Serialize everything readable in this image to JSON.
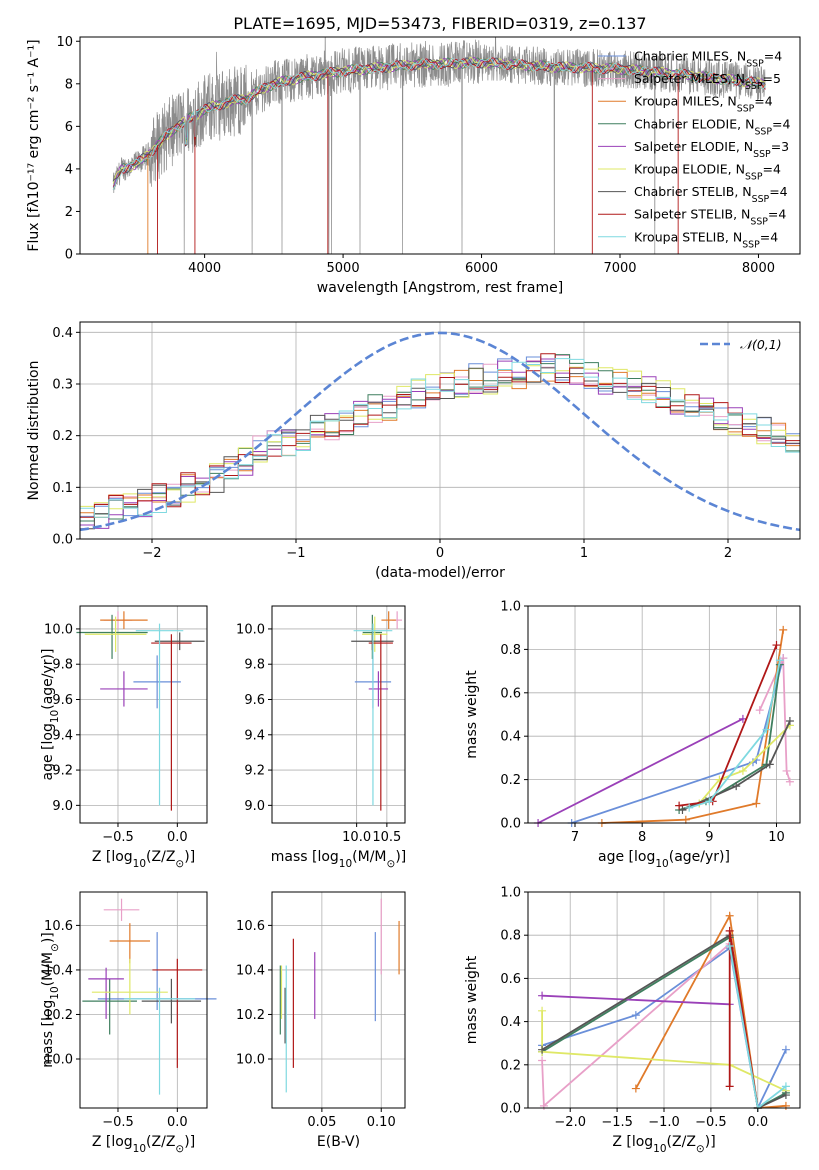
{
  "figure": {
    "title": "PLATE=1695, MJD=53473, FIBERID=0319, z=0.137"
  },
  "chart_data": [
    {
      "id": "spectrum",
      "type": "line",
      "xlabel": "wavelength [Angstrom, rest frame]",
      "ylabel": "Flux [fλ10⁻¹⁷ erg cm⁻² s⁻¹ A⁻¹]",
      "xlim": [
        3100,
        8300
      ],
      "ylim": [
        0,
        10.2
      ],
      "xticks": [
        4000,
        5000,
        6000,
        7000,
        8000
      ],
      "yticks": [
        0,
        2,
        4,
        6,
        8,
        10
      ],
      "grid": false,
      "legend_position": "right",
      "continuum": {
        "x": [
          3340,
          3400,
          3500,
          3600,
          3700,
          3800,
          3900,
          4000,
          4100,
          4200,
          4300,
          4400,
          4500,
          4700,
          5000,
          5500,
          6000,
          6500,
          7000,
          7500,
          8050
        ],
        "y": [
          3.2,
          4.0,
          4.2,
          4.7,
          5.4,
          6.0,
          6.4,
          6.8,
          7.0,
          7.2,
          7.3,
          7.7,
          8.0,
          8.3,
          8.6,
          8.9,
          9.0,
          8.8,
          8.7,
          8.4,
          8.0
        ]
      },
      "series": [
        {
          "name": "Chabrier MILES, N$_{SSP}$=4",
          "color": "#6a8fd9"
        },
        {
          "name": "Salpeter MILES, N$_{SSP}$=5",
          "color": "#e8a0c8"
        },
        {
          "name": "Kroupa MILES, N$_{SSP}$=4",
          "color": "#e07a2a"
        },
        {
          "name": "Chabrier ELODIE, N$_{SSP}$=4",
          "color": "#3f7f5f"
        },
        {
          "name": "Salpeter ELODIE, N$_{SSP}$=3",
          "color": "#9a40b8"
        },
        {
          "name": "Kroupa ELODIE, N$_{SSP}$=4",
          "color": "#dfe866"
        },
        {
          "name": "Chabrier STELIB, N$_{SSP}$=4",
          "color": "#555555"
        },
        {
          "name": "Salpeter STELIB, N$_{SSP}$=4",
          "color": "#b01818"
        },
        {
          "name": "Kroupa STELIB, N$_{SSP}$=4",
          "color": "#7fd9e0"
        }
      ],
      "data_color": "#8c8c8c"
    },
    {
      "id": "residuals",
      "type": "area",
      "xlabel": "(data-model)/error",
      "ylabel": "Normed distribution",
      "xlim": [
        -2.5,
        2.5
      ],
      "ylim": [
        0,
        0.42
      ],
      "xticks": [
        -2,
        -1,
        0,
        1,
        2
      ],
      "yticks": [
        0.0,
        0.1,
        0.2,
        0.3,
        0.4
      ],
      "grid": true,
      "legend_position": "top-right",
      "gaussian_label": "$\\mathcal{N}(0,1)$",
      "gaussian_color": "#5b85d4",
      "bin_width": 0.1,
      "base_histogram": [
        0.04,
        0.05,
        0.06,
        0.07,
        0.07,
        0.08,
        0.09,
        0.1,
        0.11,
        0.12,
        0.14,
        0.15,
        0.17,
        0.18,
        0.19,
        0.2,
        0.21,
        0.22,
        0.23,
        0.24,
        0.25,
        0.26,
        0.27,
        0.28,
        0.29,
        0.3,
        0.3,
        0.31,
        0.31,
        0.32,
        0.32,
        0.33,
        0.33,
        0.33,
        0.32,
        0.32,
        0.31,
        0.31,
        0.3,
        0.29,
        0.28,
        0.27,
        0.26,
        0.25,
        0.24,
        0.23,
        0.22,
        0.21,
        0.2,
        0.19,
        0.18,
        0.17,
        0.16,
        0.15,
        0.14,
        0.13,
        0.12,
        0.11,
        0.1,
        0.09,
        0.08,
        0.07,
        0.07,
        0.06,
        0.06,
        0.05,
        0.05,
        0.05,
        0.04,
        0.04,
        0.04,
        0.04,
        0.04,
        0.04,
        0.04,
        0.04,
        0.04,
        0.04,
        0.04,
        0.04,
        0.04,
        0.04,
        0.04,
        0.04,
        0.04,
        0.04,
        0.04,
        0.04,
        0.04,
        0.04,
        0.04,
        0.04,
        0.04,
        0.04,
        0.04,
        0.04,
        0.04,
        0.04,
        0.04,
        0.04
      ]
    },
    {
      "id": "age-vs-z",
      "type": "scatter",
      "xlabel": "Z [log$_{10}$(Z/Z$_\\odot$)]",
      "ylabel": "age  [log$_{10}$(age/yr)]",
      "xlim": [
        -0.82,
        0.25
      ],
      "ylim": [
        8.9,
        10.13
      ],
      "xticks": [
        -0.5,
        0.0
      ],
      "yticks": [
        9.0,
        9.2,
        9.4,
        9.6,
        9.8,
        10.0
      ],
      "grid": true,
      "points": [
        {
          "series": 0,
          "x": -0.17,
          "y": 9.7,
          "xerr": 0.2,
          "yerr": [
            0.15,
            0.15
          ]
        },
        {
          "series": 1,
          "x": -0.5,
          "y": 10.05,
          "xerr": 0.12,
          "yerr": [
            0.05,
            0.05
          ]
        },
        {
          "series": 2,
          "x": -0.45,
          "y": 10.05,
          "xerr": 0.2,
          "yerr": [
            0.05,
            0.05
          ]
        },
        {
          "series": 3,
          "x": -0.55,
          "y": 9.98,
          "xerr": 0.3,
          "yerr": [
            0.15,
            0.1
          ]
        },
        {
          "series": 4,
          "x": -0.45,
          "y": 9.66,
          "xerr": 0.2,
          "yerr": [
            0.1,
            0.1
          ]
        },
        {
          "series": 5,
          "x": -0.52,
          "y": 9.97,
          "xerr": 0.26,
          "yerr": [
            0.1,
            0.1
          ]
        },
        {
          "series": 6,
          "x": 0.02,
          "y": 9.93,
          "xerr": 0.21,
          "yerr": [
            0.05,
            0.05
          ]
        },
        {
          "series": 7,
          "x": -0.05,
          "y": 9.92,
          "xerr": 0.17,
          "yerr": [
            0.95,
            0.05
          ]
        },
        {
          "series": 8,
          "x": -0.15,
          "y": 9.99,
          "xerr": 0.2,
          "yerr": [
            0.99,
            0.04
          ]
        }
      ]
    },
    {
      "id": "age-vs-mass",
      "type": "scatter",
      "xlabel": "mass [log$_{10}$(M/M$_\\odot$)]",
      "ylabel": "",
      "xlim": [
        8.6,
        10.8
      ],
      "ylim": [
        8.9,
        10.13
      ],
      "xticks": [
        10.0,
        10.5
      ],
      "yticks": [
        9.0,
        9.2,
        9.4,
        9.6,
        9.8,
        10.0
      ],
      "grid": true,
      "points": [
        {
          "series": 0,
          "x": 10.27,
          "y": 9.7,
          "xerr": 0.3,
          "yerr": [
            0.15,
            0.15
          ]
        },
        {
          "series": 1,
          "x": 10.67,
          "y": 10.05,
          "xerr": 0.08,
          "yerr": [
            0.05,
            0.05
          ]
        },
        {
          "series": 2,
          "x": 10.53,
          "y": 10.05,
          "xerr": 0.12,
          "yerr": [
            0.05,
            0.05
          ]
        },
        {
          "series": 3,
          "x": 10.26,
          "y": 9.98,
          "xerr": 0.16,
          "yerr": [
            0.15,
            0.1
          ]
        },
        {
          "series": 4,
          "x": 10.36,
          "y": 9.66,
          "xerr": 0.16,
          "yerr": [
            0.1,
            0.1
          ]
        },
        {
          "series": 5,
          "x": 10.3,
          "y": 9.97,
          "xerr": 0.21,
          "yerr": [
            0.1,
            0.1
          ]
        },
        {
          "series": 6,
          "x": 10.26,
          "y": 9.93,
          "xerr": 0.35,
          "yerr": [
            0.05,
            0.05
          ]
        },
        {
          "series": 7,
          "x": 10.4,
          "y": 9.92,
          "xerr": 0.2,
          "yerr": [
            0.95,
            0.05
          ]
        },
        {
          "series": 8,
          "x": 10.27,
          "y": 9.99,
          "xerr": 0.32,
          "yerr": [
            0.99,
            0.04
          ]
        }
      ]
    },
    {
      "id": "weight-vs-age",
      "type": "line",
      "xlabel": "age  [log$_{10}$(age/yr)]",
      "ylabel": "mass weight",
      "xlim": [
        6.3,
        10.35
      ],
      "ylim": [
        0,
        1.0
      ],
      "xticks": [
        7,
        8,
        9,
        10
      ],
      "yticks": [
        0.0,
        0.2,
        0.4,
        0.6,
        0.8,
        1.0
      ],
      "grid": true,
      "series": [
        {
          "series": 0,
          "x": [
            10.1,
            9.7,
            9.65,
            6.95
          ],
          "y": [
            0.76,
            0.29,
            0.28,
            0.0
          ]
        },
        {
          "series": 1,
          "x": [
            10.2,
            10.15,
            10.1,
            9.75
          ],
          "y": [
            0.19,
            0.24,
            0.76,
            0.52
          ]
        },
        {
          "series": 2,
          "x": [
            10.1,
            9.7,
            8.65,
            7.4
          ],
          "y": [
            0.89,
            0.09,
            0.015,
            0.0
          ]
        },
        {
          "series": 3,
          "x": [
            10.05,
            9.85,
            8.95,
            8.55
          ],
          "y": [
            0.73,
            0.27,
            0.1,
            0.06
          ]
        },
        {
          "series": 4,
          "x": [
            6.45,
            9.5
          ],
          "y": [
            0.0,
            0.48
          ]
        },
        {
          "series": 5,
          "x": [
            10.2,
            9.5,
            9.15,
            8.85
          ],
          "y": [
            0.45,
            0.24,
            0.2,
            0.09
          ]
        },
        {
          "series": 6,
          "x": [
            10.2,
            9.9,
            9.4,
            8.6
          ],
          "y": [
            0.47,
            0.27,
            0.17,
            0.06
          ]
        },
        {
          "series": 7,
          "x": [
            10.0,
            9.05,
            8.55
          ],
          "y": [
            0.82,
            0.1,
            0.08
          ]
        },
        {
          "series": 8,
          "x": [
            10.05,
            9.85,
            9.0,
            8.7
          ],
          "y": [
            0.75,
            0.43,
            0.1,
            0.07
          ]
        }
      ]
    },
    {
      "id": "mass-vs-z",
      "type": "scatter",
      "xlabel": "Z [log$_{10}$(Z/Z$_\\odot$)]",
      "ylabel": "mass [log$_{10}$(M/M$_\\odot$)]",
      "xlim": [
        -0.82,
        0.25
      ],
      "ylim": [
        9.78,
        10.75
      ],
      "xticks": [
        -0.5,
        0.0
      ],
      "yticks": [
        10.0,
        10.2,
        10.4,
        10.6
      ],
      "grid": true,
      "points": [
        {
          "series": 0,
          "x": -0.17,
          "y": 10.27,
          "xerr": 0.5,
          "yerr": [
            0.05,
            0.3
          ]
        },
        {
          "series": 1,
          "x": -0.47,
          "y": 10.67,
          "xerr": 0.15,
          "yerr": [
            0.05,
            0.05
          ]
        },
        {
          "series": 2,
          "x": -0.4,
          "y": 10.53,
          "xerr": 0.17,
          "yerr": [
            0.1,
            0.08
          ]
        },
        {
          "series": 3,
          "x": -0.57,
          "y": 10.26,
          "xerr": 0.23,
          "yerr": [
            0.15,
            0.1
          ]
        },
        {
          "series": 4,
          "x": -0.6,
          "y": 10.36,
          "xerr": 0.15,
          "yerr": [
            0.18,
            0.05
          ]
        },
        {
          "series": 5,
          "x": -0.4,
          "y": 10.3,
          "xerr": 0.32,
          "yerr": [
            0.1,
            0.15
          ]
        },
        {
          "series": 6,
          "x": -0.05,
          "y": 10.26,
          "xerr": 0.25,
          "yerr": [
            0.1,
            0.1
          ]
        },
        {
          "series": 7,
          "x": 0.0,
          "y": 10.4,
          "xerr": 0.21,
          "yerr": [
            0.44,
            0.05
          ]
        },
        {
          "series": 8,
          "x": -0.15,
          "y": 10.27,
          "xerr": 0.3,
          "yerr": [
            0.43,
            0.05
          ]
        }
      ]
    },
    {
      "id": "mass-vs-ebv",
      "type": "scatter",
      "xlabel": "E(B-V)",
      "ylabel": "",
      "xlim": [
        0.008,
        0.12
      ],
      "ylim": [
        9.78,
        10.75
      ],
      "xticks": [
        0.05,
        0.1
      ],
      "yticks": [
        10.0,
        10.2,
        10.4,
        10.6
      ],
      "grid": true,
      "points": [
        {
          "series": 0,
          "x": 0.095,
          "y": 10.37,
          "yerr": [
            0.2,
            0.2
          ]
        },
        {
          "series": 1,
          "x": 0.1,
          "y": 10.5,
          "yerr": [
            0.12,
            0.22
          ]
        },
        {
          "series": 2,
          "x": 0.115,
          "y": 10.5,
          "yerr": [
            0.12,
            0.12
          ]
        },
        {
          "series": 3,
          "x": 0.015,
          "y": 10.26,
          "yerr": [
            0.15,
            0.16
          ]
        },
        {
          "series": 4,
          "x": 0.044,
          "y": 10.35,
          "yerr": [
            0.17,
            0.13
          ]
        },
        {
          "series": 5,
          "x": 0.016,
          "y": 10.3,
          "yerr": [
            0.12,
            0.12
          ]
        },
        {
          "series": 6,
          "x": 0.019,
          "y": 10.22,
          "yerr": [
            0.15,
            0.1
          ]
        },
        {
          "series": 7,
          "x": 0.026,
          "y": 10.32,
          "yerr": [
            0.36,
            0.22
          ]
        },
        {
          "series": 8,
          "x": 0.02,
          "y": 10.3,
          "yerr": [
            0.45,
            0.12
          ]
        }
      ]
    },
    {
      "id": "weight-vs-z",
      "type": "line",
      "xlabel": "Z [log$_{10}$(Z/Z$_\\odot$)]",
      "ylabel": "mass weight",
      "xlim": [
        -2.45,
        0.45
      ],
      "ylim": [
        0,
        1.0
      ],
      "xticks": [
        -2.0,
        -1.5,
        -1.0,
        -0.5,
        0.0
      ],
      "yticks": [
        0.0,
        0.2,
        0.4,
        0.6,
        0.8,
        1.0
      ],
      "grid": true,
      "series": [
        {
          "series": 0,
          "x": [
            0.3,
            0.0,
            -0.3,
            -1.3,
            -2.3
          ],
          "y": [
            0.27,
            0.0,
            0.74,
            0.43,
            0.29
          ]
        },
        {
          "series": 1,
          "x": [
            -2.3,
            -2.28,
            -0.3
          ],
          "y": [
            0.22,
            0.01,
            0.76
          ]
        },
        {
          "series": 2,
          "x": [
            0.3,
            0.0,
            -0.3,
            -1.3
          ],
          "y": [
            0.01,
            0.0,
            0.89,
            0.09
          ]
        },
        {
          "series": 3,
          "x": [
            0.3,
            0.0,
            -0.3,
            -2.3
          ],
          "y": [
            0.07,
            0.0,
            0.79,
            0.26
          ]
        },
        {
          "series": 4,
          "x": [
            -2.3,
            -0.3
          ],
          "y": [
            0.52,
            0.48
          ]
        },
        {
          "series": 5,
          "x": [
            0.3,
            -0.3,
            -2.3,
            -2.3
          ],
          "y": [
            0.08,
            0.2,
            0.26,
            0.45
          ]
        },
        {
          "series": 6,
          "x": [
            0.3,
            0.0,
            -0.3,
            -2.3
          ],
          "y": [
            0.06,
            0.0,
            0.8,
            0.27
          ]
        },
        {
          "series": 7,
          "x": [
            0.0,
            -0.3,
            -0.3
          ],
          "y": [
            0.0,
            0.82,
            0.1
          ]
        },
        {
          "series": 8,
          "x": [
            0.3,
            0.0,
            -0.3
          ],
          "y": [
            0.1,
            0.0,
            0.75
          ]
        }
      ]
    }
  ]
}
